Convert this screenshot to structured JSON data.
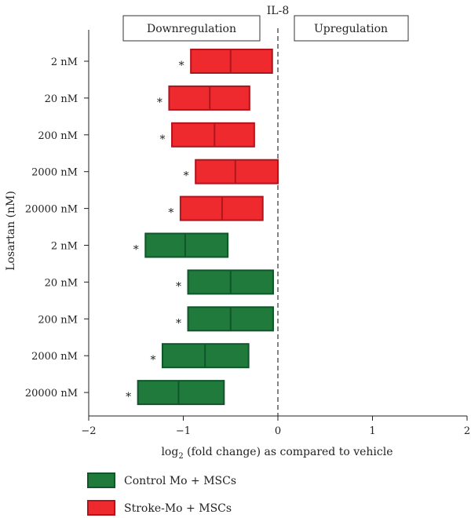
{
  "chart_data": {
    "type": "boxplot-horizontal",
    "title": "IL-8",
    "ylabel": "Losartan (nM)",
    "xlabel_prefix": "log",
    "xlabel_sub": "2",
    "xlabel_suffix": " (fold change) as compared to vehicle",
    "xlim": [
      -2,
      2
    ],
    "xticks": [
      -2,
      -1,
      0,
      1,
      2
    ],
    "xtick_labels": [
      "−2",
      "−1",
      "0",
      "1",
      "2"
    ],
    "grid": false,
    "region_labels": {
      "down": "Downregulation",
      "up": "Upregulation"
    },
    "categories": [
      "2 nM",
      "20 nM",
      "200 nM",
      "2000 nM",
      "20000 nM",
      "2 nM",
      "20 nM",
      "200 nM",
      "2000 nM",
      "20000 nM"
    ],
    "series": [
      {
        "name": "Stroke-Mo + MSCs",
        "color": "#ee2a2f",
        "edge": "#b0151d",
        "boxes": [
          {
            "category": "2 nM",
            "low": -0.92,
            "mid": -0.5,
            "high": -0.06,
            "significance": "*"
          },
          {
            "category": "20 nM",
            "low": -1.15,
            "mid": -0.72,
            "high": -0.3,
            "significance": "*"
          },
          {
            "category": "200 nM",
            "low": -1.12,
            "mid": -0.67,
            "high": -0.25,
            "significance": "*"
          },
          {
            "category": "2000 nM",
            "low": -0.87,
            "mid": -0.45,
            "high": 0.0,
            "significance": "*"
          },
          {
            "category": "20000 nM",
            "low": -1.03,
            "mid": -0.59,
            "high": -0.16,
            "significance": "*"
          }
        ]
      },
      {
        "name": "Control Mo + MSCs",
        "color": "#1f7a3c",
        "edge": "#11552a",
        "boxes": [
          {
            "category": "2 nM",
            "low": -1.4,
            "mid": -0.98,
            "high": -0.53,
            "significance": "*"
          },
          {
            "category": "20 nM",
            "low": -0.95,
            "mid": -0.5,
            "high": -0.05,
            "significance": "*"
          },
          {
            "category": "200 nM",
            "low": -0.95,
            "mid": -0.5,
            "high": -0.05,
            "significance": "*"
          },
          {
            "category": "2000 nM",
            "low": -1.22,
            "mid": -0.77,
            "high": -0.31,
            "significance": "*"
          },
          {
            "category": "20000 nM",
            "low": -1.48,
            "mid": -1.05,
            "high": -0.57,
            "significance": "*"
          }
        ]
      }
    ],
    "legend": {
      "placement": "bottom-left",
      "order": [
        "Control Mo + MSCs",
        "Stroke-Mo + MSCs"
      ]
    },
    "reference_line": {
      "x": 0,
      "style": "dashed"
    }
  }
}
